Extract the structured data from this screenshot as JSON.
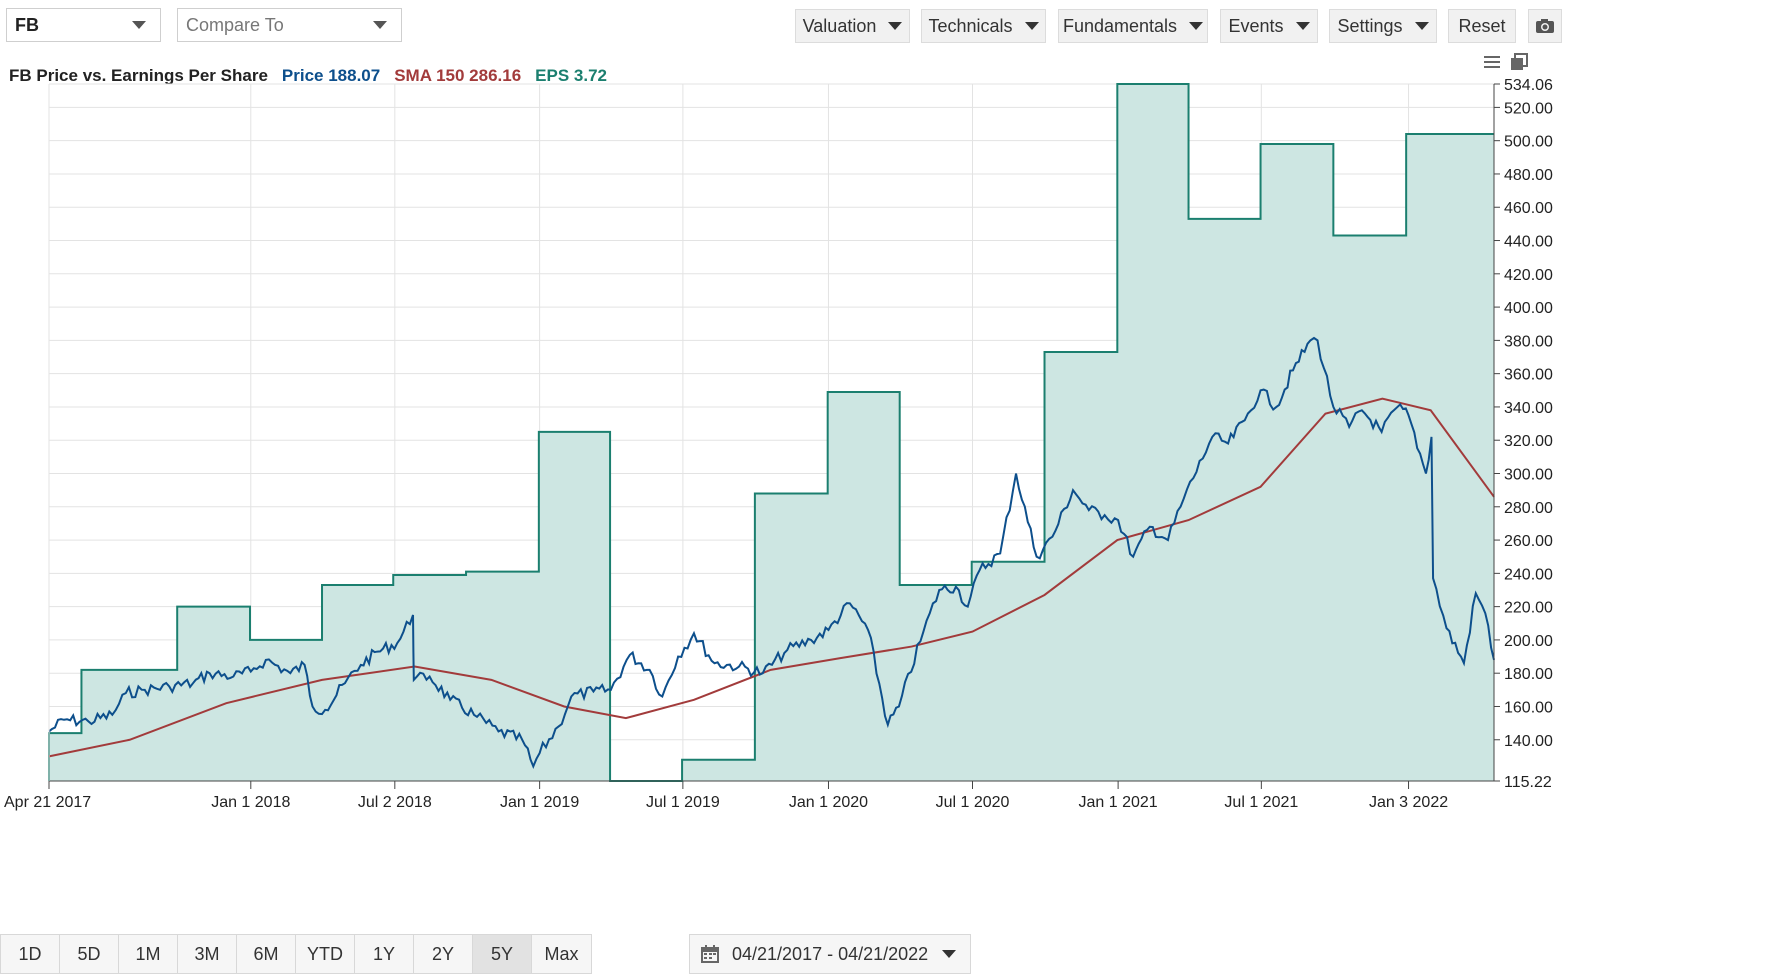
{
  "toolbar": {
    "symbol": "FB",
    "compare_placeholder": "Compare To",
    "buttons": [
      "Valuation",
      "Technicals",
      "Fundamentals",
      "Events",
      "Settings"
    ],
    "reset": "Reset"
  },
  "legend": {
    "title": "FB Price vs. Earnings Per Share",
    "price": "Price 188.07",
    "sma": "SMA 150 286.16",
    "eps": "EPS 3.72"
  },
  "colors": {
    "price": "#0d4f8c",
    "sma": "#a23b3b",
    "eps": "#1b7f6f",
    "eps_fill": "#cde6e2"
  },
  "ranges": [
    "1D",
    "5D",
    "1M",
    "3M",
    "6M",
    "YTD",
    "1Y",
    "2Y",
    "5Y",
    "Max"
  ],
  "active_range": "5Y",
  "date_range": "04/21/2017 - 04/21/2022",
  "chart_data": {
    "type": "line",
    "xlim": [
      "2017-04-21",
      "2022-04-21"
    ],
    "ylim": [
      115.22,
      534.06
    ],
    "y_ticks": [
      "534.06",
      "520.00",
      "500.00",
      "480.00",
      "460.00",
      "440.00",
      "420.00",
      "400.00",
      "380.00",
      "360.00",
      "340.00",
      "320.00",
      "300.00",
      "280.00",
      "260.00",
      "240.00",
      "220.00",
      "200.00",
      "180.00",
      "160.00",
      "140.00",
      "115.22"
    ],
    "x_ticks": [
      {
        "label": "Apr 21 2017",
        "date": "2017-04-21"
      },
      {
        "label": "Jan 1 2018",
        "date": "2018-01-01"
      },
      {
        "label": "Jul 2 2018",
        "date": "2018-07-02"
      },
      {
        "label": "Jan 1 2019",
        "date": "2019-01-01"
      },
      {
        "label": "Jul 1 2019",
        "date": "2019-07-01"
      },
      {
        "label": "Jan 1 2020",
        "date": "2020-01-01"
      },
      {
        "label": "Jul 1 2020",
        "date": "2020-07-01"
      },
      {
        "label": "Jan 1 2021",
        "date": "2021-01-01"
      },
      {
        "label": "Jul 1 2021",
        "date": "2021-07-01"
      },
      {
        "label": "Jan 3 2022",
        "date": "2022-01-03"
      }
    ],
    "grid": true,
    "series": [
      {
        "name": "Price",
        "points": [
          [
            "2017-04-21",
            145
          ],
          [
            "2017-05-10",
            152
          ],
          [
            "2017-06-10",
            151
          ],
          [
            "2017-07-10",
            155
          ],
          [
            "2017-07-27",
            168
          ],
          [
            "2017-08-20",
            170
          ],
          [
            "2017-09-20",
            172
          ],
          [
            "2017-10-20",
            174
          ],
          [
            "2017-11-10",
            180
          ],
          [
            "2017-12-10",
            178
          ],
          [
            "2018-01-01",
            181
          ],
          [
            "2018-01-20",
            188
          ],
          [
            "2018-02-20",
            180
          ],
          [
            "2018-03-10",
            185
          ],
          [
            "2018-03-20",
            160
          ],
          [
            "2018-04-05",
            158
          ],
          [
            "2018-04-30",
            174
          ],
          [
            "2018-05-20",
            185
          ],
          [
            "2018-06-10",
            193
          ],
          [
            "2018-07-05",
            198
          ],
          [
            "2018-07-25",
            215
          ],
          [
            "2018-07-26",
            176
          ],
          [
            "2018-08-15",
            178
          ],
          [
            "2018-09-10",
            164
          ],
          [
            "2018-10-10",
            155
          ],
          [
            "2018-11-10",
            145
          ],
          [
            "2018-12-10",
            140
          ],
          [
            "2018-12-24",
            124
          ],
          [
            "2019-01-01",
            132
          ],
          [
            "2019-01-25",
            148
          ],
          [
            "2019-02-10",
            166
          ],
          [
            "2019-03-10",
            169
          ],
          [
            "2019-04-01",
            170
          ],
          [
            "2019-04-25",
            191
          ],
          [
            "2019-05-20",
            182
          ],
          [
            "2019-06-05",
            166
          ],
          [
            "2019-06-25",
            190
          ],
          [
            "2019-07-15",
            204
          ],
          [
            "2019-08-10",
            186
          ],
          [
            "2019-09-10",
            184
          ],
          [
            "2019-10-10",
            180
          ],
          [
            "2019-11-10",
            194
          ],
          [
            "2019-12-10",
            200
          ],
          [
            "2020-01-01",
            206
          ],
          [
            "2020-01-28",
            222
          ],
          [
            "2020-02-20",
            206
          ],
          [
            "2020-03-16",
            149
          ],
          [
            "2020-03-30",
            160
          ],
          [
            "2020-04-30",
            205
          ],
          [
            "2020-05-20",
            230
          ],
          [
            "2020-06-10",
            232
          ],
          [
            "2020-06-25",
            220
          ],
          [
            "2020-07-10",
            242
          ],
          [
            "2020-08-05",
            252
          ],
          [
            "2020-08-25",
            300
          ],
          [
            "2020-09-20",
            250
          ],
          [
            "2020-10-10",
            262
          ],
          [
            "2020-11-05",
            290
          ],
          [
            "2020-11-25",
            278
          ],
          [
            "2020-12-15",
            275
          ],
          [
            "2021-01-01",
            272
          ],
          [
            "2021-01-20",
            250
          ],
          [
            "2021-02-10",
            268
          ],
          [
            "2021-03-05",
            260
          ],
          [
            "2021-03-25",
            285
          ],
          [
            "2021-04-30",
            322
          ],
          [
            "2021-05-20",
            318
          ],
          [
            "2021-06-10",
            332
          ],
          [
            "2021-06-30",
            350
          ],
          [
            "2021-07-20",
            340
          ],
          [
            "2021-08-10",
            362
          ],
          [
            "2021-09-01",
            380
          ],
          [
            "2021-09-10",
            380
          ],
          [
            "2021-09-30",
            340
          ],
          [
            "2021-10-20",
            328
          ],
          [
            "2021-11-05",
            338
          ],
          [
            "2021-11-30",
            325
          ],
          [
            "2021-12-20",
            340
          ],
          [
            "2022-01-03",
            335
          ],
          [
            "2022-01-25",
            300
          ],
          [
            "2022-02-01",
            322
          ],
          [
            "2022-02-03",
            237
          ],
          [
            "2022-02-20",
            207
          ],
          [
            "2022-03-14",
            186
          ],
          [
            "2022-03-29",
            228
          ],
          [
            "2022-04-10",
            216
          ],
          [
            "2022-04-21",
            188
          ]
        ]
      },
      {
        "name": "SMA 150",
        "points": [
          [
            "2017-04-21",
            130
          ],
          [
            "2017-08-01",
            140
          ],
          [
            "2017-12-01",
            162
          ],
          [
            "2018-04-01",
            176
          ],
          [
            "2018-07-27",
            184
          ],
          [
            "2018-11-01",
            176
          ],
          [
            "2019-02-01",
            160
          ],
          [
            "2019-04-20",
            153
          ],
          [
            "2019-07-15",
            164
          ],
          [
            "2019-10-20",
            182
          ],
          [
            "2020-01-15",
            189
          ],
          [
            "2020-04-15",
            196
          ],
          [
            "2020-07-01",
            205
          ],
          [
            "2020-09-30",
            227
          ],
          [
            "2020-12-31",
            260
          ],
          [
            "2021-03-31",
            272
          ],
          [
            "2021-06-30",
            292
          ],
          [
            "2021-09-20",
            336
          ],
          [
            "2021-12-01",
            345
          ],
          [
            "2022-01-31",
            338
          ],
          [
            "2022-04-21",
            286
          ]
        ]
      },
      {
        "name": "EPS",
        "step": true,
        "points": [
          [
            "2017-04-21",
            144
          ],
          [
            "2017-06-01",
            182
          ],
          [
            "2017-09-30",
            220
          ],
          [
            "2017-12-31",
            200
          ],
          [
            "2018-04-01",
            233
          ],
          [
            "2018-06-30",
            239
          ],
          [
            "2018-09-30",
            241
          ],
          [
            "2018-12-31",
            325
          ],
          [
            "2019-03-31",
            115.22
          ],
          [
            "2019-06-30",
            128
          ],
          [
            "2019-09-30",
            288
          ],
          [
            "2019-12-31",
            349
          ],
          [
            "2020-03-31",
            233
          ],
          [
            "2020-06-30",
            247
          ],
          [
            "2020-09-30",
            373
          ],
          [
            "2020-12-31",
            534.06
          ],
          [
            "2021-03-31",
            453
          ],
          [
            "2021-06-30",
            498
          ],
          [
            "2021-09-30",
            443
          ],
          [
            "2021-12-31",
            504
          ],
          [
            "2022-04-21",
            504
          ]
        ]
      }
    ]
  }
}
